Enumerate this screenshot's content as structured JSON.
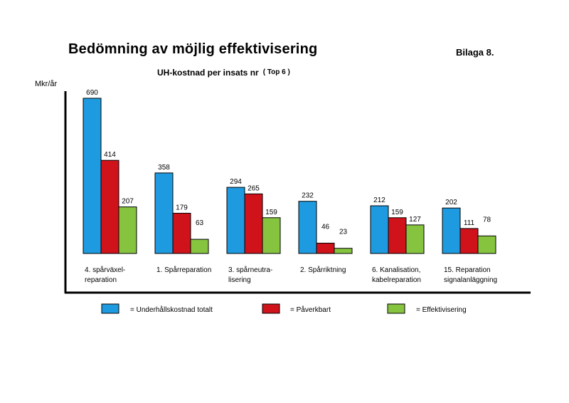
{
  "header": {
    "title": "Bedömning av möjlig effektivisering",
    "annex": "Bilaga 8."
  },
  "chart_data": {
    "type": "bar",
    "title": "UH-kostnad per insats nr",
    "title_note": "( Top 6 )",
    "ylabel": "Mkr/år",
    "xlabel": "",
    "ylim": [
      0,
      700
    ],
    "grid": false,
    "legend_position": "bottom",
    "categories": [
      [
        "4. spårväxel-",
        "reparation"
      ],
      [
        "1. Spårreparation"
      ],
      [
        "3. spårneutra-",
        "lisering"
      ],
      [
        "2. Spårriktning"
      ],
      [
        "6. Kanalisation,",
        "kabelreparation"
      ],
      [
        "15. Reparation",
        "signalanläggning"
      ]
    ],
    "series": [
      {
        "name": "= Underhållskostnad totalt",
        "color": "#1e9be0",
        "values": [
          690,
          358,
          294,
          232,
          212,
          202
        ]
      },
      {
        "name": "= Påverkbart",
        "color": "#d0121b",
        "values": [
          414,
          179,
          265,
          46,
          159,
          111
        ]
      },
      {
        "name": "= Effektivisering",
        "color": "#86c440",
        "values": [
          207,
          63,
          159,
          23,
          127,
          78
        ]
      }
    ]
  }
}
